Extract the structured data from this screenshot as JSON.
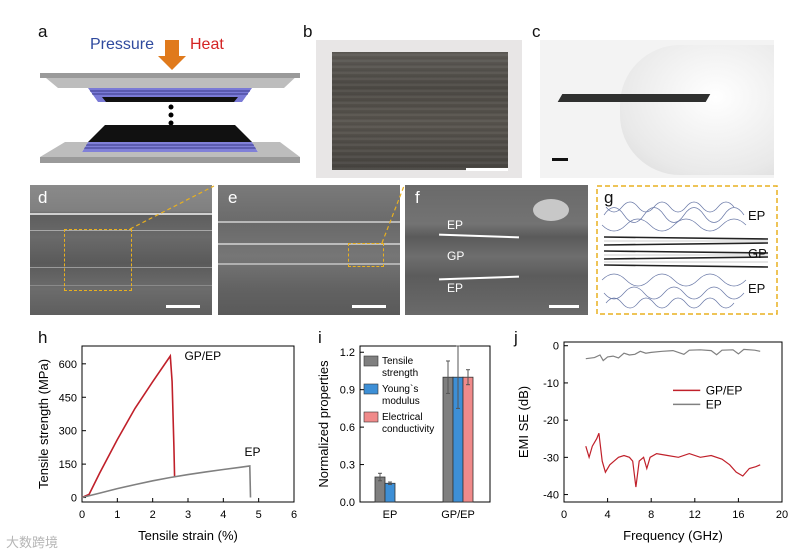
{
  "panels": {
    "a": {
      "label": "a",
      "pressure": "Pressure",
      "heat": "Heat"
    },
    "b": {
      "label": "b"
    },
    "c": {
      "label": "c"
    },
    "d": {
      "label": "d"
    },
    "e": {
      "label": "e"
    },
    "f": {
      "label": "f",
      "layer_top": "EP",
      "layer_mid": "GP",
      "layer_bottom": "EP"
    },
    "g": {
      "label": "g",
      "layer_top": "EP",
      "layer_mid": "GP",
      "layer_bottom": "EP"
    },
    "h": {
      "label": "h"
    },
    "i": {
      "label": "i"
    },
    "j": {
      "label": "j"
    }
  },
  "watermark": "大数跨境",
  "colors": {
    "gpep": "#c0202a",
    "ep": "#808080",
    "bar_tensile": "#7f7f7f",
    "bar_young": "#3d8fd6",
    "bar_elec": "#f08a8a",
    "dashed": "#e8b020",
    "arrow": "#e07a1c"
  },
  "chart_data": [
    {
      "type": "line",
      "panel": "h",
      "xlabel": "Tensile strain (%)",
      "ylabel": "Tensile strength (MPa)",
      "xlim": [
        0,
        6
      ],
      "ylim": [
        -20,
        680
      ],
      "xticks": [
        "0",
        "1",
        "2",
        "3",
        "4",
        "5",
        "6"
      ],
      "yticks": [
        "0",
        "150",
        "300",
        "450",
        "600"
      ],
      "series": [
        {
          "name": "GP/EP",
          "points": [
            [
              0,
              0
            ],
            [
              0.2,
              14
            ],
            [
              0.5,
              110
            ],
            [
              1.0,
              260
            ],
            [
              1.5,
              400
            ],
            [
              2.0,
              520
            ],
            [
              2.5,
              635
            ],
            [
              2.55,
              520
            ],
            [
              2.6,
              230
            ],
            [
              2.62,
              90
            ]
          ]
        },
        {
          "name": "EP",
          "points": [
            [
              0,
              0
            ],
            [
              0.5,
              20
            ],
            [
              1.0,
              40
            ],
            [
              1.5,
              58
            ],
            [
              2.0,
              75
            ],
            [
              2.5,
              90
            ],
            [
              3.0,
              103
            ],
            [
              3.5,
              115
            ],
            [
              4.0,
              126
            ],
            [
              4.5,
              136
            ],
            [
              4.75,
              142
            ],
            [
              4.77,
              0
            ]
          ]
        }
      ]
    },
    {
      "type": "bar",
      "panel": "i",
      "ylabel": "Normalized properties",
      "categories": [
        "EP",
        "GP/EP"
      ],
      "ylim": [
        0,
        1.25
      ],
      "yticks": [
        "0.0",
        "0.3",
        "0.6",
        "0.9",
        "1.2"
      ],
      "series": [
        {
          "name": "Tensile strength",
          "values": [
            0.2,
            1.0
          ],
          "errors": [
            0.03,
            0.13
          ]
        },
        {
          "name": "Young`s modulus",
          "values": [
            0.15,
            1.0
          ],
          "errors": [
            0.01,
            0.25
          ]
        },
        {
          "name": "Electrical conductivity",
          "values": [
            0.0,
            1.0
          ],
          "errors": [
            0.0,
            0.06
          ]
        }
      ]
    },
    {
      "type": "line",
      "panel": "j",
      "xlabel": "Frequency (GHz)",
      "ylabel": "EMI SE (dB)",
      "xlim": [
        0,
        20
      ],
      "ylim": [
        -42,
        1
      ],
      "xticks": [
        "0",
        "4",
        "8",
        "12",
        "16",
        "20"
      ],
      "yticks": [
        "0",
        "-10",
        "-20",
        "-30",
        "-40"
      ],
      "series": [
        {
          "name": "GP/EP",
          "points": [
            [
              2.0,
              -27
            ],
            [
              2.3,
              -30
            ],
            [
              2.6,
              -27
            ],
            [
              3.0,
              -25
            ],
            [
              3.2,
              -23.5
            ],
            [
              3.5,
              -31
            ],
            [
              3.8,
              -34
            ],
            [
              4.2,
              -32
            ],
            [
              4.6,
              -31
            ],
            [
              5.0,
              -30
            ],
            [
              5.5,
              -29.5
            ],
            [
              6.0,
              -30
            ],
            [
              6.3,
              -31
            ],
            [
              6.6,
              -38
            ],
            [
              6.9,
              -31
            ],
            [
              7.3,
              -30
            ],
            [
              7.6,
              -33
            ],
            [
              7.9,
              -30
            ],
            [
              8.5,
              -29
            ],
            [
              9.5,
              -29.5
            ],
            [
              10.5,
              -30
            ],
            [
              11.5,
              -29
            ],
            [
              12.5,
              -30
            ],
            [
              13.5,
              -29.5
            ],
            [
              14.5,
              -30.5
            ],
            [
              15.2,
              -32
            ],
            [
              15.8,
              -34
            ],
            [
              16.4,
              -35
            ],
            [
              17.0,
              -33
            ],
            [
              17.6,
              -32.5
            ],
            [
              18.0,
              -32
            ]
          ]
        },
        {
          "name": "EP",
          "points": [
            [
              2.0,
              -3.5
            ],
            [
              2.8,
              -3.2
            ],
            [
              3.3,
              -2.5
            ],
            [
              3.6,
              -4
            ],
            [
              4.0,
              -3
            ],
            [
              4.5,
              -2.8
            ],
            [
              5.0,
              -3.3
            ],
            [
              5.5,
              -2
            ],
            [
              6.0,
              -2.5
            ],
            [
              6.5,
              -2.3
            ],
            [
              7.0,
              -1.5
            ],
            [
              7.5,
              -2
            ],
            [
              8.0,
              -1.8
            ],
            [
              9.0,
              -1.5
            ],
            [
              10.0,
              -1.3
            ],
            [
              11.0,
              -2.3
            ],
            [
              11.5,
              -1.2
            ],
            [
              12.5,
              -1.1
            ],
            [
              13.5,
              -1.3
            ],
            [
              14.0,
              -2.4
            ],
            [
              14.5,
              -1.2
            ],
            [
              15.5,
              -1.1
            ],
            [
              16.0,
              -2.2
            ],
            [
              16.5,
              -1
            ],
            [
              17.5,
              -1.2
            ],
            [
              18.0,
              -1.5
            ]
          ]
        }
      ]
    }
  ]
}
